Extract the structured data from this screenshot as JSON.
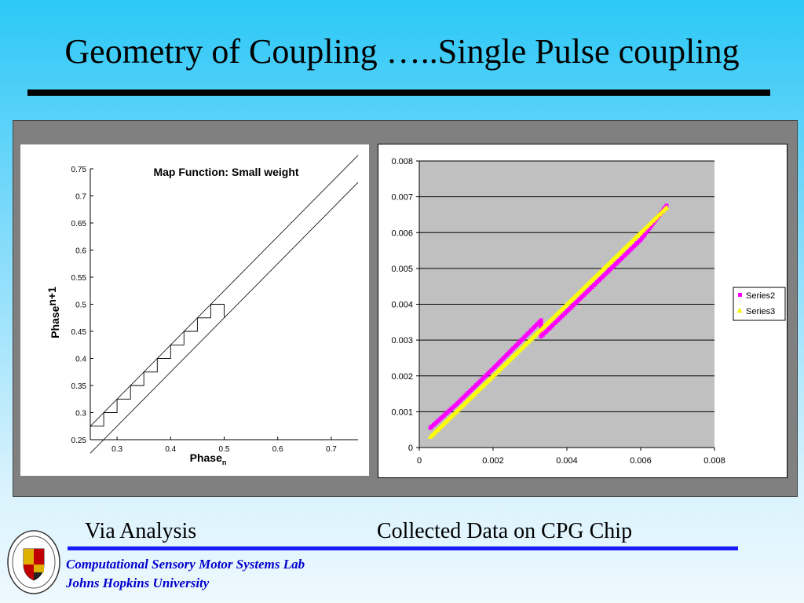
{
  "slide": {
    "title": "Geometry of Coupling …..Single Pulse coupling",
    "caption_left": "Via Analysis",
    "caption_right": "Collected Data on CPG Chip",
    "footer_line1": "Computational Sensory Motor Systems Lab",
    "footer_line2": "Johns Hopkins University"
  },
  "colors": {
    "footer_text": "#0000cc",
    "footer_rule": "#1a1aff",
    "series2": "#ff00ff",
    "series3": "#ffff00"
  },
  "chart_data": [
    {
      "type": "line",
      "title": "Map Function: Small weight",
      "xlabel": "Phase",
      "xlabel_sub": "n",
      "ylabel": "Phase",
      "ylabel_sub": "n+1",
      "xlim": [
        0.25,
        0.75
      ],
      "ylim": [
        0.25,
        0.75
      ],
      "x_ticks": [
        "0.3",
        "0.4",
        "0.5",
        "0.6",
        "0.7"
      ],
      "x_tick_values": [
        0.3,
        0.4,
        0.5,
        0.6,
        0.7
      ],
      "y_ticks": [
        "0.25",
        "0.3",
        "0.35",
        "0.4",
        "0.45",
        "0.5",
        "0.55",
        "0.6",
        "0.65",
        "0.7",
        "0.75"
      ],
      "y_tick_values": [
        0.25,
        0.3,
        0.35,
        0.4,
        0.45,
        0.5,
        0.55,
        0.6,
        0.65,
        0.7,
        0.75
      ],
      "series": [
        {
          "x": [
            0.25,
            0.75
          ],
          "y": [
            0.275,
            0.775
          ]
        },
        {
          "x": [
            0.25,
            0.75
          ],
          "y": [
            0.225,
            0.725
          ]
        }
      ],
      "cobweb": {
        "x": [
          0.25,
          0.275,
          0.275,
          0.3,
          0.3,
          0.325,
          0.325,
          0.35,
          0.35,
          0.375,
          0.375,
          0.4,
          0.4,
          0.425,
          0.425,
          0.45,
          0.45,
          0.475,
          0.475,
          0.5,
          0.5
        ],
        "y": [
          0.275,
          0.275,
          0.3,
          0.3,
          0.325,
          0.325,
          0.35,
          0.35,
          0.375,
          0.375,
          0.4,
          0.4,
          0.425,
          0.425,
          0.45,
          0.45,
          0.475,
          0.475,
          0.5,
          0.5,
          0.475
        ]
      }
    },
    {
      "type": "scatter",
      "xlim": [
        0,
        0.008
      ],
      "ylim": [
        0,
        0.008
      ],
      "x_ticks": [
        "0",
        "0.002",
        "0.004",
        "0.006",
        "0.008"
      ],
      "x_tick_values": [
        0,
        0.002,
        0.004,
        0.006,
        0.008
      ],
      "y_ticks": [
        "0",
        "0.001",
        "0.002",
        "0.003",
        "0.004",
        "0.005",
        "0.006",
        "0.007",
        "0.008"
      ],
      "y_tick_values": [
        0,
        0.001,
        0.002,
        0.003,
        0.004,
        0.005,
        0.006,
        0.007,
        0.008
      ],
      "grid": true,
      "legend": "right",
      "series": [
        {
          "name": "Series2",
          "color": "#ff00ff",
          "x": [
            0.0003,
            0.001,
            0.002,
            0.0033,
            0.0033,
            0.004,
            0.005,
            0.006,
            0.0067
          ],
          "y": [
            0.00055,
            0.0012,
            0.0022,
            0.00355,
            0.0031,
            0.0038,
            0.0048,
            0.0058,
            0.00675
          ]
        },
        {
          "name": "Series3",
          "color": "#ffff00",
          "x": [
            0.0003,
            0.001,
            0.002,
            0.003,
            0.004,
            0.005,
            0.006,
            0.0067
          ],
          "y": [
            0.0003,
            0.001,
            0.002,
            0.003,
            0.004,
            0.005,
            0.006,
            0.0067
          ]
        }
      ]
    }
  ]
}
